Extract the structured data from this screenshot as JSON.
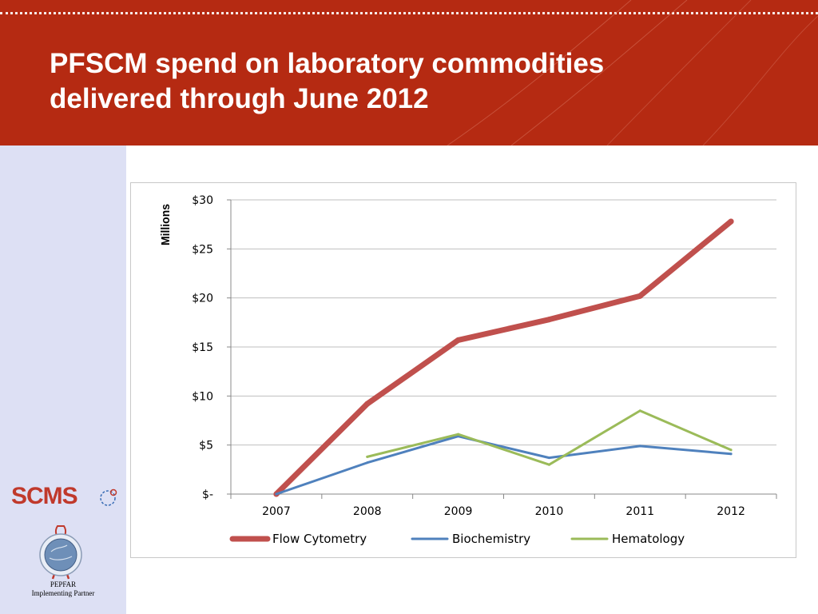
{
  "slide": {
    "title_line1": "PFSCM spend on laboratory commodities",
    "title_line2": "delivered through June 2012"
  },
  "branding": {
    "scms_logo_text": "SCMS",
    "pepfar_line1": "PEPFAR",
    "pepfar_line2": "Implementing Partner"
  },
  "colors": {
    "header_bg": "#b52a12",
    "sidebar_bg": "#dde0f4",
    "flow_cytometry": "#c0504d",
    "biochemistry": "#4f81bd",
    "hematology": "#9bbb59"
  },
  "chart_data": {
    "type": "line",
    "title": "",
    "xlabel": "",
    "ylabel": "Millions",
    "x": [
      "2007",
      "2008",
      "2009",
      "2010",
      "2011",
      "2012"
    ],
    "ylim": [
      0,
      30
    ],
    "yticks": [
      0,
      5,
      10,
      15,
      20,
      25,
      30
    ],
    "ytick_labels": [
      "$-",
      "$5",
      "$10",
      "$15",
      "$20",
      "$25",
      "$30"
    ],
    "grid": true,
    "legend_position": "bottom",
    "series": [
      {
        "name": "Flow Cytometry",
        "color": "#c0504d",
        "values": [
          0,
          9.2,
          15.7,
          17.8,
          20.2,
          27.8
        ]
      },
      {
        "name": "Biochemistry",
        "color": "#4f81bd",
        "values": [
          0,
          3.2,
          5.9,
          3.7,
          4.9,
          4.1
        ]
      },
      {
        "name": "Hematology",
        "color": "#9bbb59",
        "values": [
          null,
          3.8,
          6.1,
          3.0,
          8.5,
          4.5
        ]
      }
    ]
  }
}
